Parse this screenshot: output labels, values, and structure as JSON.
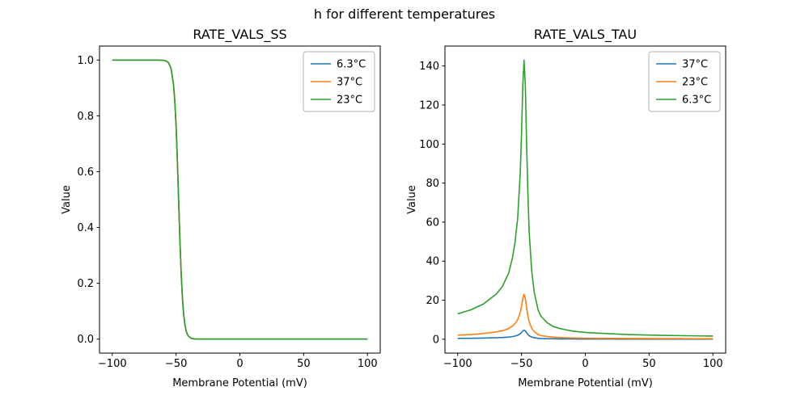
{
  "figure": {
    "suptitle": "h for different temperatures",
    "background_color": "#ffffff"
  },
  "chart_data": [
    {
      "type": "line",
      "title": "RATE_VALS_SS",
      "xlabel": "Membrane Potential (mV)",
      "ylabel": "Value",
      "xlim": [
        -110,
        110
      ],
      "ylim": [
        -0.05,
        1.05
      ],
      "xticks": [
        -100,
        -50,
        0,
        50,
        100
      ],
      "xtick_labels": [
        "−100",
        "−50",
        "0",
        "50",
        "100"
      ],
      "yticks": [
        0.0,
        0.2,
        0.4,
        0.6,
        0.8,
        1.0
      ],
      "ytick_labels": [
        "0.0",
        "0.2",
        "0.4",
        "0.6",
        "0.8",
        "1.0"
      ],
      "grid": false,
      "legend_position": "upper right",
      "x": [
        -100,
        -90,
        -80,
        -70,
        -65,
        -60,
        -58,
        -56,
        -54,
        -52,
        -51,
        -50,
        -49,
        -48,
        -47,
        -46,
        -45,
        -44,
        -43,
        -42,
        -41,
        -40,
        -38,
        -36,
        -34,
        -30,
        -20,
        -10,
        0,
        25,
        50,
        75,
        100
      ],
      "values": [
        1,
        1,
        1,
        1,
        1,
        0.999,
        0.997,
        0.991,
        0.971,
        0.913,
        0.853,
        0.765,
        0.643,
        0.5,
        0.357,
        0.235,
        0.147,
        0.087,
        0.05,
        0.028,
        0.016,
        0.009,
        0.003,
        0.001,
        0,
        0,
        0,
        0,
        0,
        0,
        0,
        0,
        0
      ],
      "series": [
        {
          "name": "6.3°C",
          "color": "#1f77b4"
        },
        {
          "name": "37°C",
          "color": "#ff7f0e"
        },
        {
          "name": "23°C",
          "color": "#2ca02c"
        }
      ],
      "note": "all three temperature curves overlap exactly; green drawn last is visible"
    },
    {
      "type": "line",
      "title": "RATE_VALS_TAU",
      "xlabel": "Membrane Potential (mV)",
      "ylabel": "Value",
      "xlim": [
        -110,
        110
      ],
      "ylim": [
        -7.1,
        150.2
      ],
      "xticks": [
        -100,
        -50,
        0,
        50,
        100
      ],
      "xtick_labels": [
        "−100",
        "−50",
        "0",
        "50",
        "100"
      ],
      "yticks": [
        0,
        20,
        40,
        60,
        80,
        100,
        120,
        140
      ],
      "ytick_labels": [
        "0",
        "20",
        "40",
        "60",
        "80",
        "100",
        "120",
        "140"
      ],
      "grid": false,
      "legend_position": "upper right",
      "x": [
        -100,
        -95,
        -90,
        -85,
        -80,
        -75,
        -70,
        -65,
        -60,
        -57,
        -55,
        -53,
        -51,
        -50,
        -49,
        -48,
        -47,
        -46,
        -45,
        -44,
        -42,
        -40,
        -37,
        -35,
        -30,
        -25,
        -20,
        -15,
        -10,
        -5,
        0,
        10,
        20,
        30,
        40,
        50,
        60,
        70,
        80,
        90,
        100
      ],
      "series": [
        {
          "name": "37°C",
          "color": "#1f77b4",
          "values": [
            0.43,
            0.46,
            0.49,
            0.54,
            0.59,
            0.67,
            0.76,
            0.89,
            1.12,
            1.38,
            1.64,
            2.04,
            2.8,
            3.45,
            4.27,
            4.7,
            4.27,
            3.29,
            2.47,
            1.81,
            1.15,
            0.79,
            0.49,
            0.39,
            0.28,
            0.21,
            0.18,
            0.16,
            0.14,
            0.13,
            0.12,
            0.1,
            0.09,
            0.08,
            0.08,
            0.07,
            0.07,
            0.06,
            0.06,
            0.05,
            0.05
          ]
        },
        {
          "name": "23°C",
          "color": "#ff7f0e",
          "values": [
            2.1,
            2.25,
            2.4,
            2.65,
            2.9,
            3.3,
            3.7,
            4.35,
            5.5,
            6.8,
            8.1,
            10.0,
            13.7,
            16.9,
            20.9,
            23,
            20.9,
            16.1,
            12.1,
            8.9,
            5.6,
            3.9,
            2.4,
            1.9,
            1.4,
            1.05,
            0.9,
            0.77,
            0.68,
            0.61,
            0.56,
            0.5,
            0.45,
            0.4,
            0.37,
            0.35,
            0.32,
            0.31,
            0.29,
            0.27,
            0.26
          ]
        },
        {
          "name": "6.3°C",
          "color": "#2ca02c",
          "values": [
            13,
            14,
            15,
            16.5,
            18,
            20.5,
            23,
            27,
            34,
            42,
            50,
            62,
            85,
            105,
            130,
            143,
            130,
            100,
            75,
            55,
            35,
            24,
            15,
            12,
            8.5,
            6.5,
            5.5,
            4.8,
            4.2,
            3.8,
            3.5,
            3.1,
            2.8,
            2.5,
            2.3,
            2.15,
            2.0,
            1.9,
            1.8,
            1.7,
            1.6
          ]
        }
      ]
    }
  ]
}
